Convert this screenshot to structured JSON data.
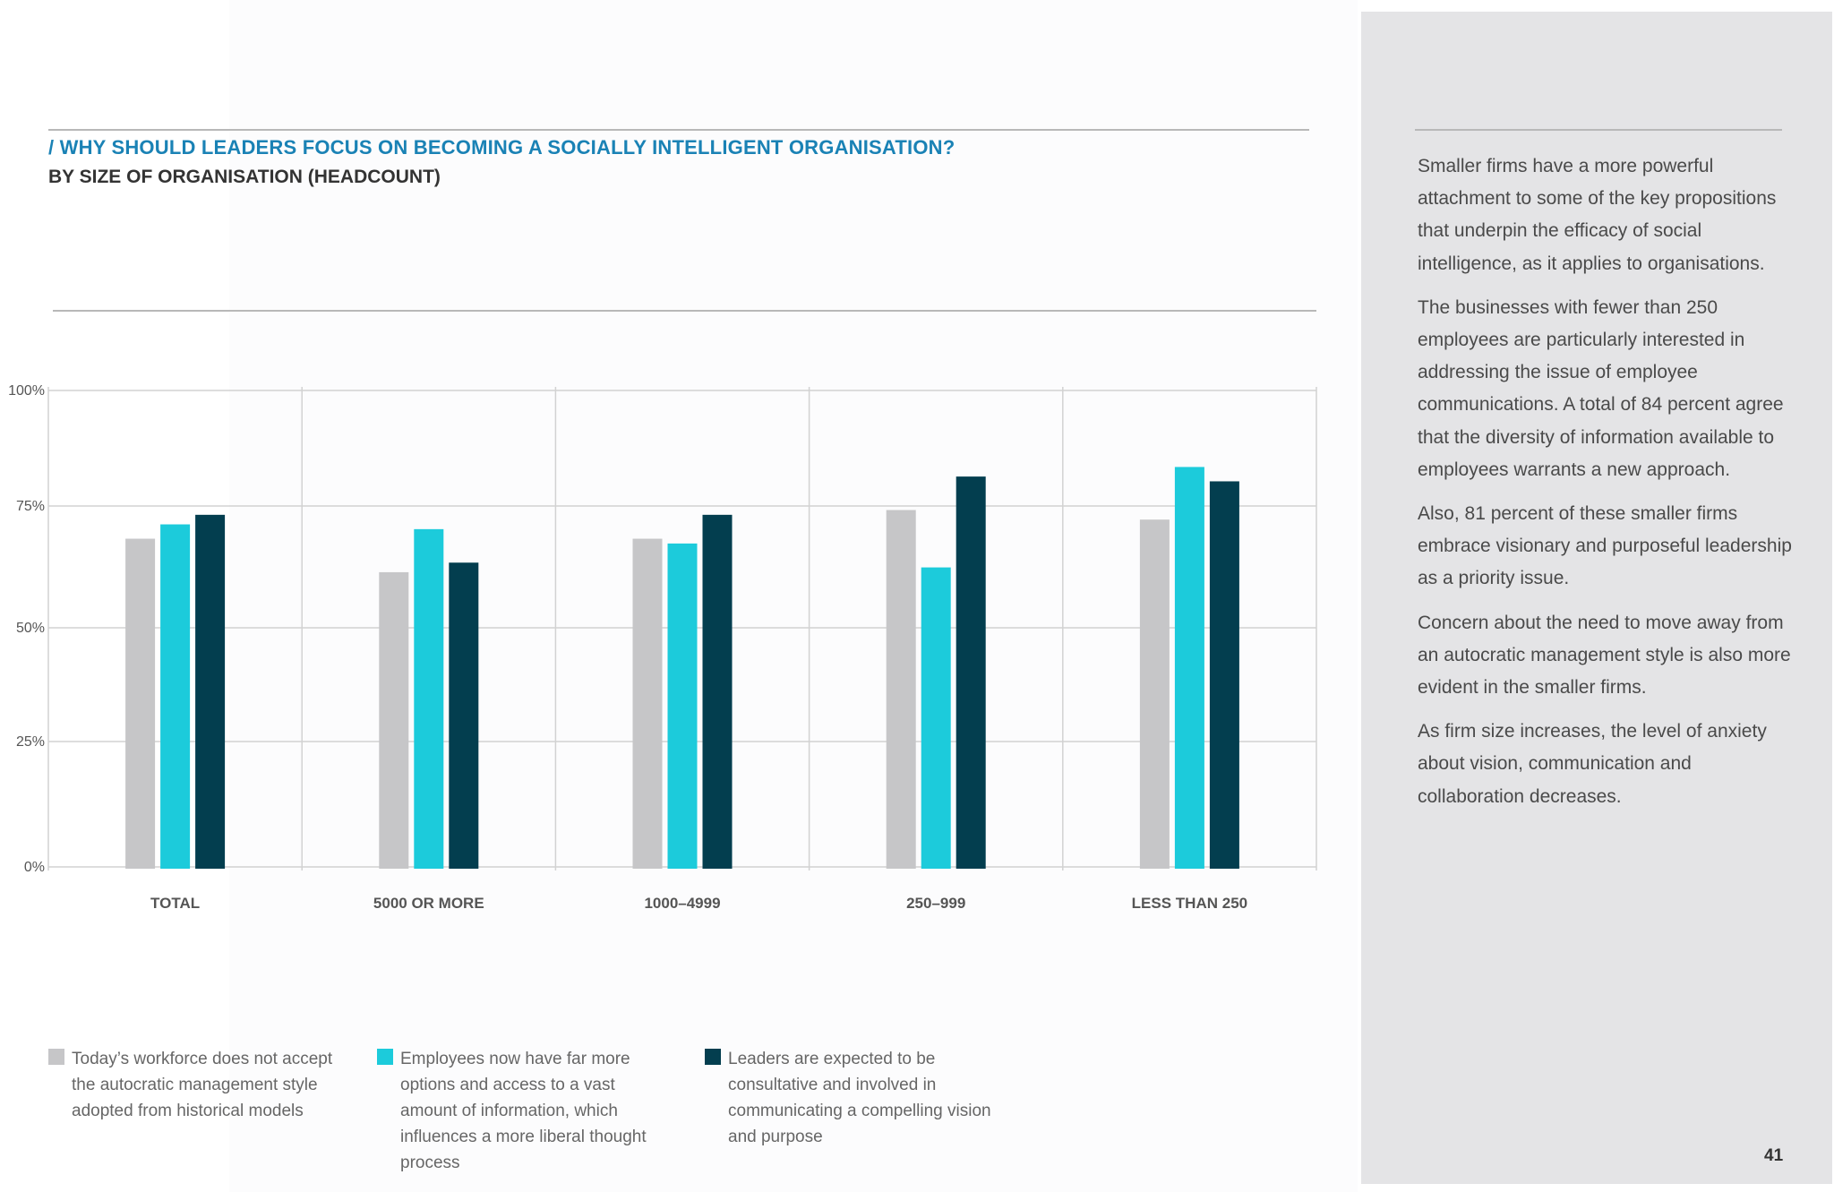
{
  "header": {
    "title": "/ WHY SHOULD LEADERS FOCUS ON BECOMING A SOCIALLY INTELLIGENT ORGANISATION?",
    "subtitle": "BY SIZE OF ORGANISATION (HEADCOUNT)"
  },
  "chart_data": {
    "type": "bar",
    "categories": [
      "TOTAL",
      "5000 OR MORE",
      "1000–4999",
      "250–999",
      "LESS THAN 250"
    ],
    "series": [
      {
        "name": "Today’s workforce does not accept the autocratic management style adopted from historical models",
        "color": "#c6c6c8",
        "values": [
          69,
          62,
          69,
          75,
          73
        ]
      },
      {
        "name": "Employees now have far more options and access to a vast amount of information, which influences a more liberal thought process",
        "color": "#1ccbdb",
        "values": [
          72,
          71,
          68,
          63,
          84
        ]
      },
      {
        "name": "Leaders are expected to be consultative and involved in communicating a compelling vision and purpose",
        "color": "#033e4f",
        "values": [
          74,
          64,
          74,
          82,
          81
        ]
      }
    ],
    "yticks": [
      "0%",
      "25%",
      "50%",
      "75%",
      "100%"
    ],
    "ylim": [
      0,
      100
    ],
    "grid": true,
    "legend_position": "bottom"
  },
  "legend": [
    {
      "color": "#c6c6c8",
      "text": "Today’s workforce does not accept the autocratic management style adopted from historical models"
    },
    {
      "color": "#1ccbdb",
      "text": "Employees now have far more options and access to a vast amount of information, which influences a more liberal thought process"
    },
    {
      "color": "#033e4f",
      "text": "Leaders are expected to be consultative and involved in communicating a compelling vision and purpose"
    }
  ],
  "sidebar": {
    "paragraphs": [
      "Smaller firms have a more powerful attachment to some of the key propositions that underpin the efficacy of social intelligence, as it applies to organisations.",
      "The businesses with fewer than 250 employees are particularly interested in addressing the issue of employee communications. A total of 84 percent agree that the diversity of information available to employees warrants a new approach.",
      "Also, 81 percent of these smaller firms embrace visionary and purposeful leadership as a priority issue.",
      "Concern about the need to move away from an autocratic management style is also more evident in the smaller firms.",
      "As firm size increases, the level of anxiety about vision, communication and collaboration decreases."
    ]
  },
  "footer": {
    "page_number": "41"
  }
}
